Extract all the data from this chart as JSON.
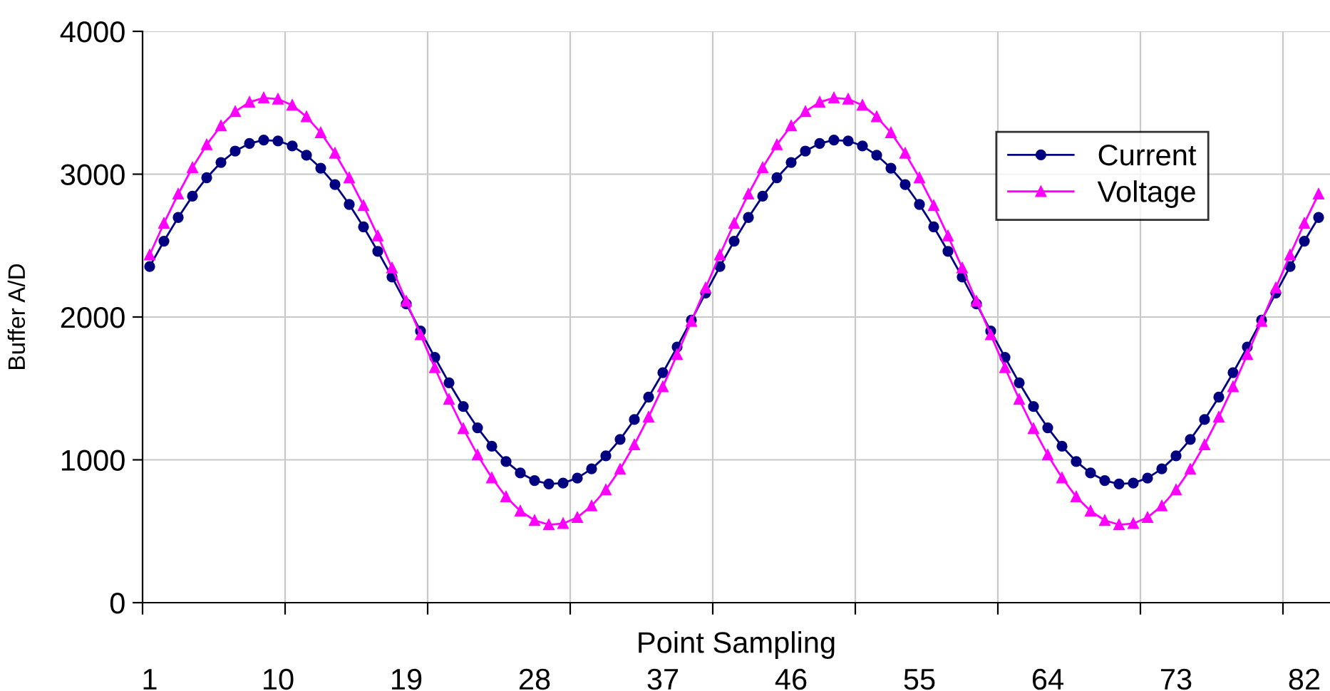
{
  "chart_data": {
    "type": "line",
    "xlabel": "Point Sampling",
    "ylabel": "Buffer A/D",
    "categories": [
      "1",
      null,
      null,
      null,
      null,
      null,
      null,
      null,
      null,
      "10",
      null,
      null,
      null,
      null,
      null,
      null,
      null,
      null,
      "19",
      null,
      null,
      null,
      null,
      null,
      null,
      null,
      null,
      "28",
      null,
      null,
      null,
      null,
      null,
      null,
      null,
      null,
      "37",
      null,
      null,
      null,
      null,
      null,
      null,
      null,
      null,
      "46",
      null,
      null,
      null,
      null,
      null,
      null,
      null,
      null,
      "55",
      null,
      null,
      null,
      null,
      null,
      null,
      null,
      null,
      "64",
      null,
      null,
      null,
      null,
      null,
      null,
      null,
      null,
      "73",
      null,
      null,
      null,
      null,
      null,
      null,
      null,
      null,
      "82",
      null
    ],
    "series": [
      {
        "name": "Current",
        "color": "#000080",
        "marker": "circle",
        "values": [
          2353,
          2531,
          2697,
          2846,
          2975,
          3082,
          3162,
          3215,
          3239,
          3233,
          3198,
          3133,
          3042,
          2927,
          2788,
          2631,
          2460,
          2280,
          2092,
          1902,
          1717,
          1539,
          1373,
          1224,
          1095,
          988,
          908,
          855,
          831,
          837,
          872,
          937,
          1028,
          1143,
          1282,
          1439,
          1610,
          1790,
          1978,
          2168,
          2353,
          2531,
          2697,
          2846,
          2975,
          3082,
          3162,
          3215,
          3239,
          3233,
          3198,
          3133,
          3042,
          2927,
          2788,
          2631,
          2460,
          2280,
          2092,
          1902,
          1717,
          1539,
          1373,
          1224,
          1095,
          988,
          908,
          855,
          831,
          837,
          872,
          937,
          1028,
          1143,
          1282,
          1439,
          1610,
          1790,
          1978,
          2168,
          2353,
          2531,
          2697
        ]
      },
      {
        "name": "Voltage",
        "color": "#ff00ff",
        "marker": "triangle",
        "values": [
          2435,
          2656,
          2861,
          3046,
          3206,
          3339,
          3438,
          3504,
          3534,
          3526,
          3483,
          3402,
          3290,
          3146,
          2974,
          2780,
          2568,
          2343,
          2110,
          1876,
          1645,
          1424,
          1219,
          1034,
          874,
          741,
          642,
          576,
          546,
          554,
          597,
          678,
          790,
          934,
          1106,
          1300,
          1512,
          1737,
          1970,
          2204,
          2435,
          2656,
          2861,
          3046,
          3206,
          3339,
          3438,
          3504,
          3534,
          3526,
          3483,
          3402,
          3290,
          3146,
          2974,
          2780,
          2568,
          2343,
          2110,
          1876,
          1645,
          1424,
          1219,
          1034,
          874,
          741,
          642,
          576,
          546,
          554,
          597,
          678,
          790,
          934,
          1106,
          1300,
          1512,
          1737,
          1970,
          2204,
          2435,
          2656,
          2861
        ]
      }
    ],
    "ylim": [
      0,
      4000
    ],
    "yticks": [
      0,
      1000,
      2000,
      3000,
      4000
    ],
    "grid": true,
    "legend": "top right",
    "line_style": "solid"
  }
}
